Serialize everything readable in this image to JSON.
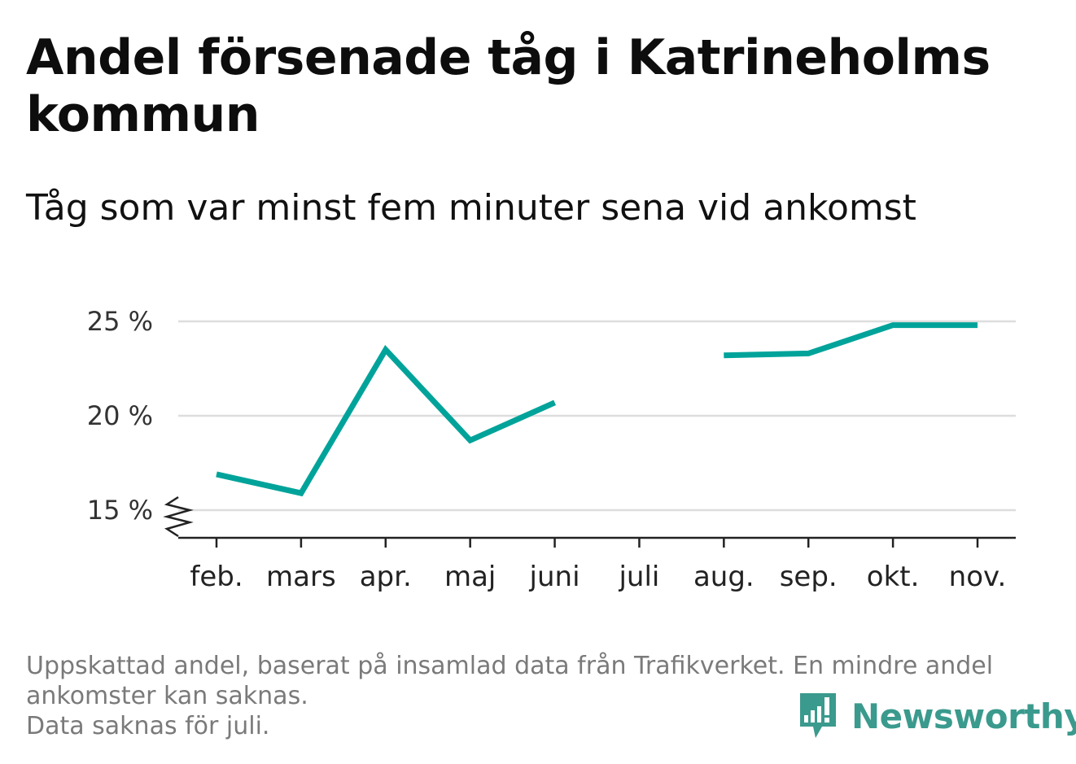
{
  "header": {
    "title": "Andel försenade tåg i Katrineholms kommun",
    "subtitle": "Tåg som var minst fem minuter sena vid ankomst"
  },
  "chart_data": {
    "type": "line",
    "categories": [
      "feb.",
      "mars",
      "apr.",
      "maj",
      "juni",
      "juli",
      "aug.",
      "sep.",
      "okt.",
      "nov."
    ],
    "series": [
      {
        "values": [
          16.9,
          15.9,
          23.5,
          18.7,
          20.7,
          null,
          23.2,
          23.3,
          24.8,
          24.8
        ],
        "color": "#00a39a"
      }
    ],
    "ylim": [
      15,
      25
    ],
    "yticks": [
      15,
      20,
      25
    ],
    "ytick_labels": [
      "15 %",
      "20 %",
      "25 %"
    ],
    "grid": true,
    "axis_break": true
  },
  "footnote": {
    "line1": "Uppskattad andel, baserat på insamlad data från Trafikverket. En mindre andel",
    "line2": "ankomster kan saknas.",
    "line3": "Data saknas för juli."
  },
  "brand": {
    "name": "Newsworthy",
    "logo_icon": "bar-chart-speech-bubble-icon",
    "color": "#3a9a8d"
  }
}
